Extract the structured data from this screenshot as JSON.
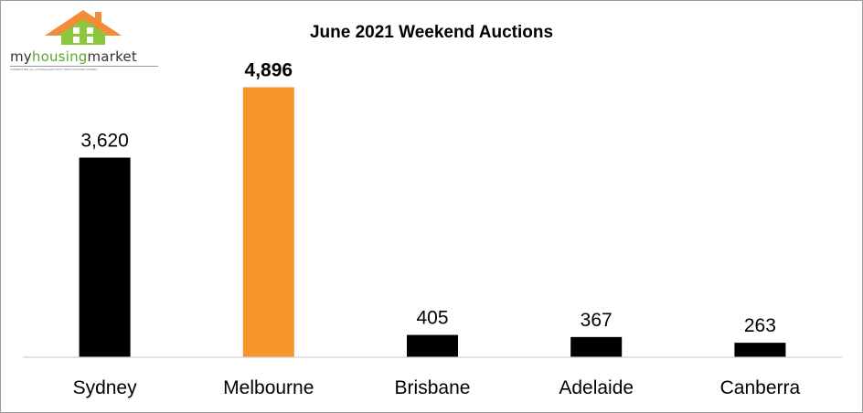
{
  "logo": {
    "name_part1": "my",
    "name_part2": "housing",
    "name_part3": "market",
    "tagline": "CONNECTING ALL AUSTRALIANS WITH THEIR HOUSING MARKET",
    "icon": "house-logo-icon",
    "colors": {
      "roof": "#f28c38",
      "house": "#8cc63f",
      "window": "#ffffff"
    }
  },
  "chart_data": {
    "type": "bar",
    "title": "June 2021 Weekend Auctions",
    "xlabel": "",
    "ylabel": "",
    "categories": [
      "Sydney",
      "Melbourne",
      "Brisbane",
      "Adelaide",
      "Canberra"
    ],
    "values": [
      3620,
      4896,
      405,
      367,
      263
    ],
    "value_labels": [
      "3,620",
      "4,896",
      "405",
      "367",
      "263"
    ],
    "highlight_index": 1,
    "ylim": [
      0,
      5500
    ],
    "grid": false,
    "legend": "none",
    "colors": {
      "bar": "#000000",
      "highlight": "#f7942b",
      "axis": "#d0d0d0",
      "text": "#000000"
    }
  }
}
